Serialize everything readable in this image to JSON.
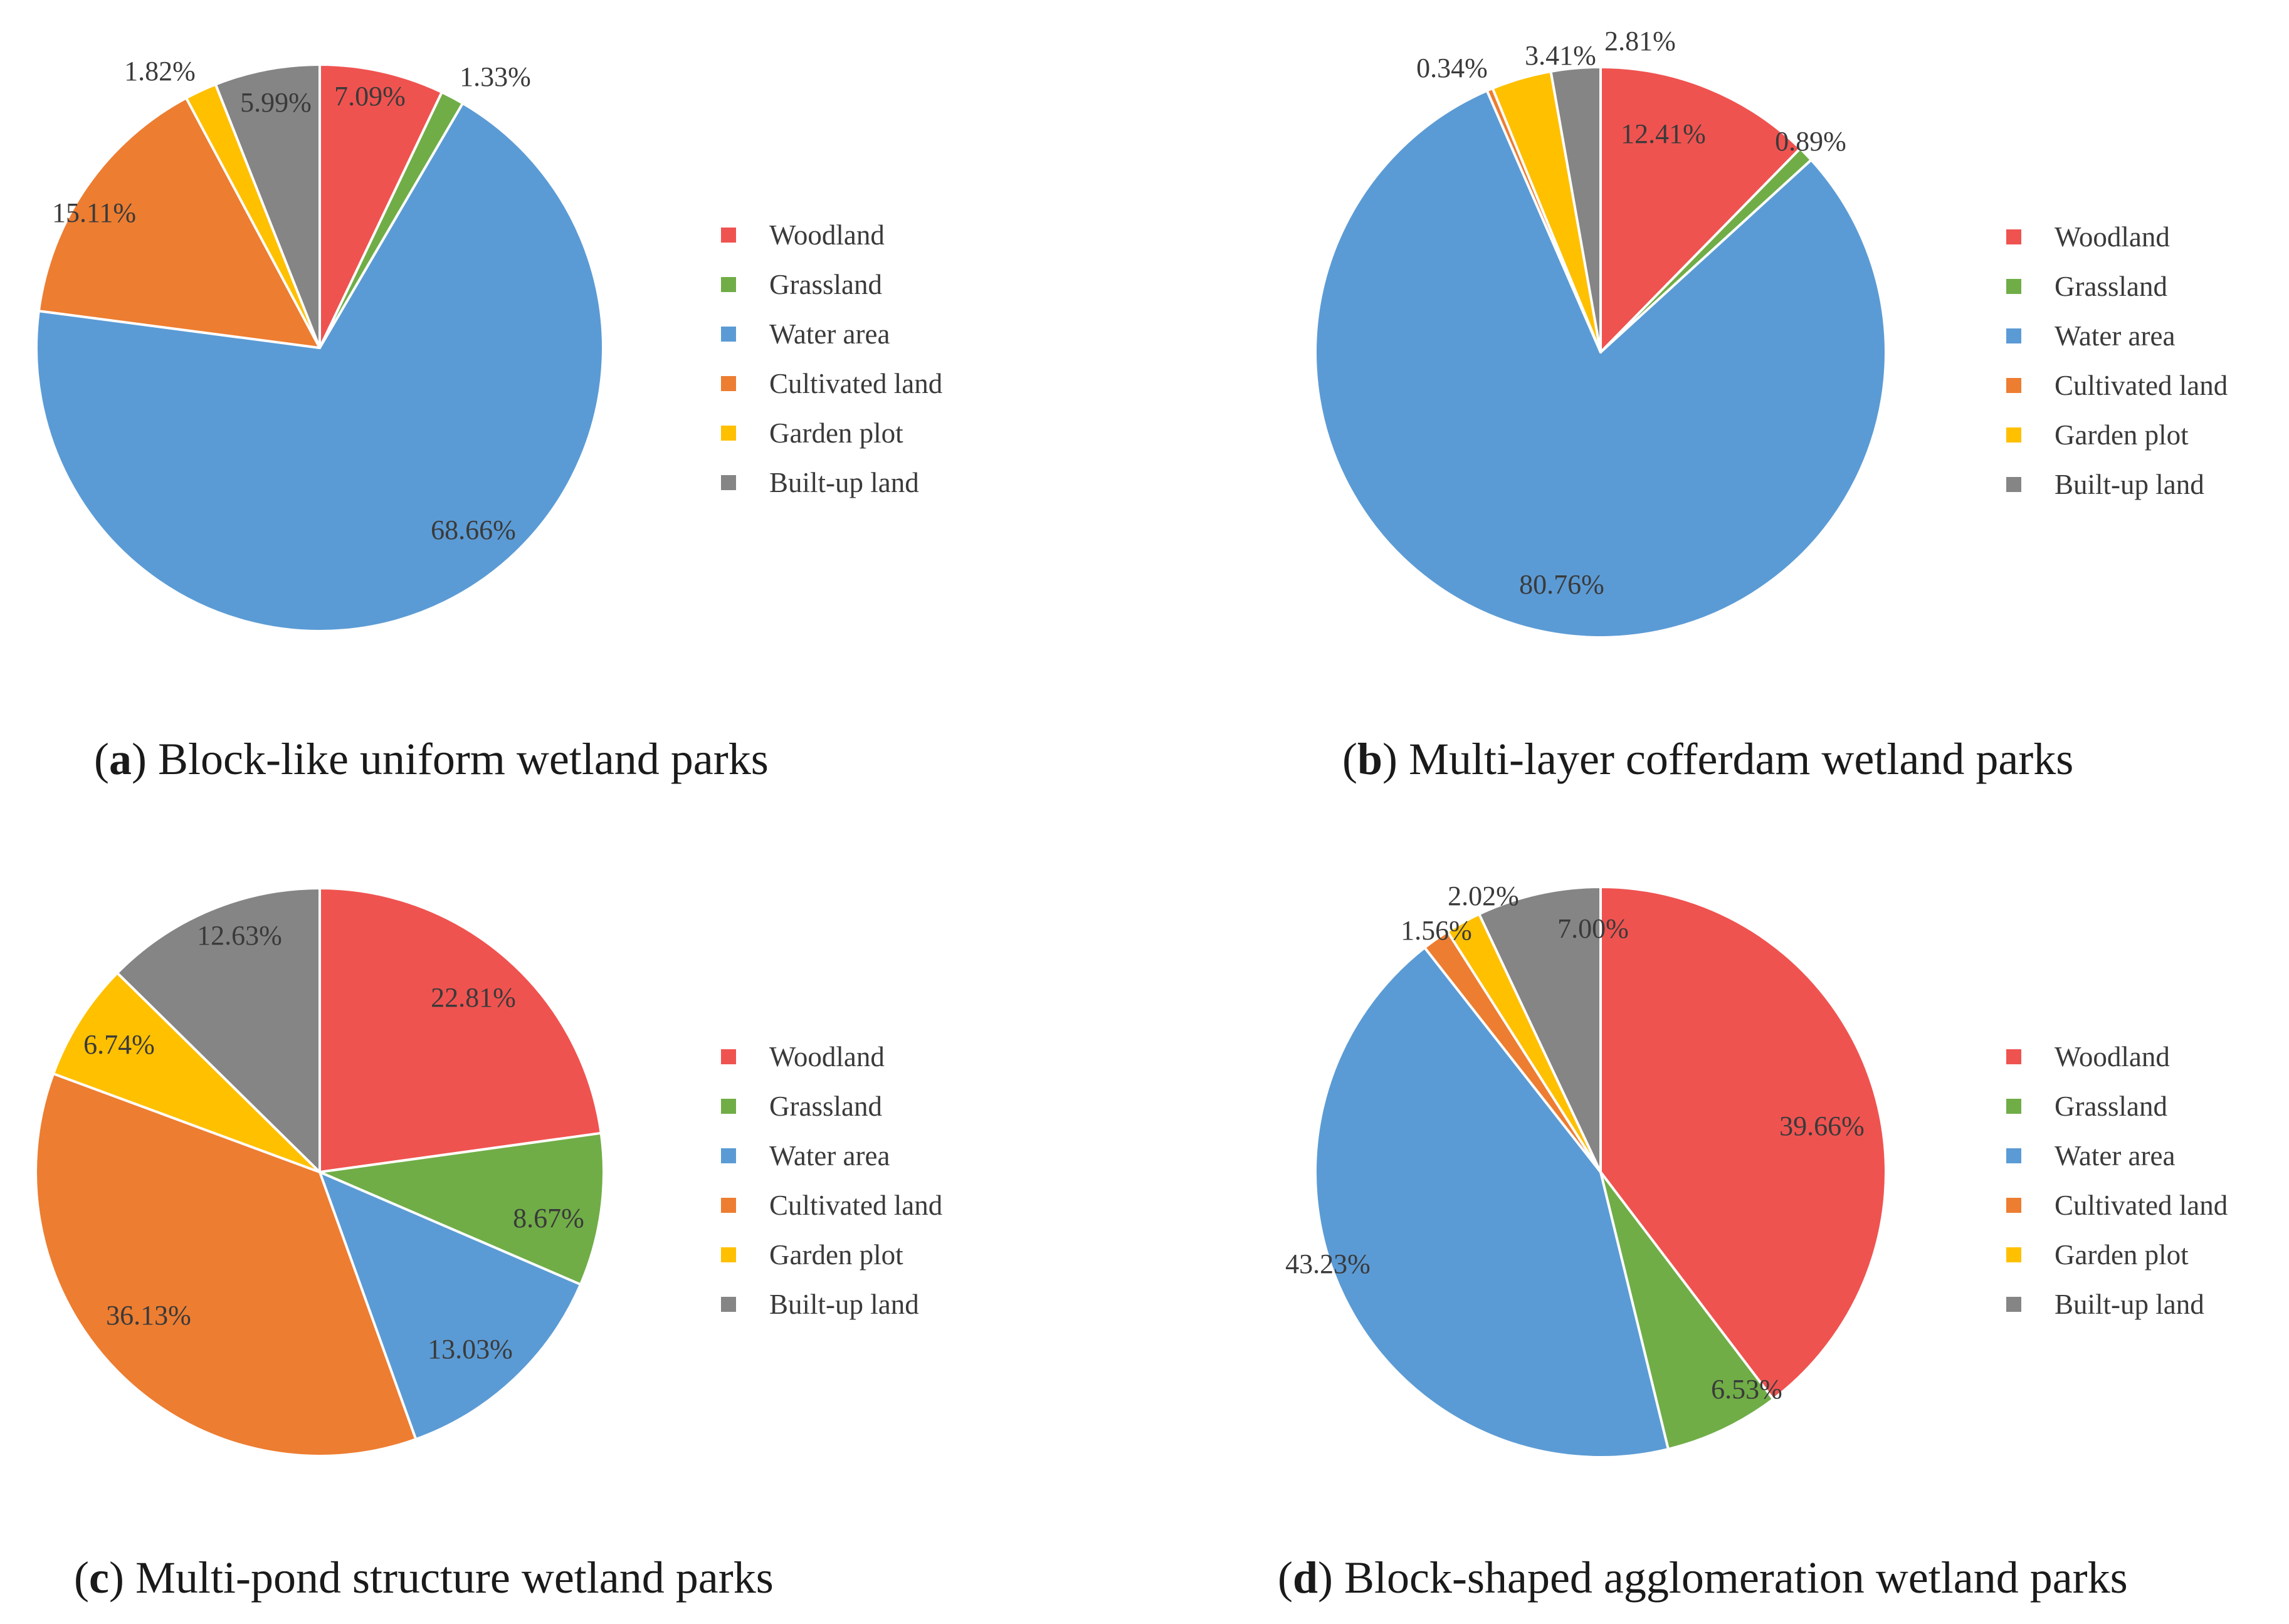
{
  "legend_labels": [
    "Woodland",
    "Grassland",
    "Water area",
    "Cultivated land",
    "Garden plot",
    "Built-up land"
  ],
  "colors": {
    "Woodland": "#ef5350",
    "Grassland": "#70ad47",
    "Water area": "#5b9bd5",
    "Cultivated land": "#ed7d31",
    "Garden plot": "#ffc000",
    "Built-up land": "#858585"
  },
  "chart_data": [
    {
      "type": "pie",
      "id": "a",
      "caption_letter": "a",
      "caption_text": "Block-like uniform wetland parks",
      "categories": [
        "Woodland",
        "Grassland",
        "Water area",
        "Cultivated land",
        "Garden plot",
        "Built-up land"
      ],
      "values": [
        7.09,
        1.33,
        68.66,
        15.11,
        1.82,
        5.99
      ],
      "labels": [
        "7.09%",
        "1.33%",
        "68.66%",
        "15.11%",
        "1.82%",
        "5.99%"
      ]
    },
    {
      "type": "pie",
      "id": "b",
      "caption_letter": "b",
      "caption_text": "Multi-layer cofferdam wetland parks",
      "categories": [
        "Woodland",
        "Grassland",
        "Water area",
        "Cultivated land",
        "Garden plot",
        "Built-up land"
      ],
      "values": [
        12.41,
        0.89,
        80.76,
        0.34,
        3.41,
        2.81
      ],
      "labels": [
        "12.41%",
        "0.89%",
        "80.76%",
        "0.34%",
        "3.41%",
        "2.81%"
      ]
    },
    {
      "type": "pie",
      "id": "c",
      "caption_letter": "c",
      "caption_text": "Multi-pond structure wetland parks",
      "categories": [
        "Woodland",
        "Grassland",
        "Water area",
        "Cultivated land",
        "Garden plot",
        "Built-up land"
      ],
      "values": [
        22.81,
        8.67,
        13.03,
        36.13,
        6.74,
        12.63
      ],
      "labels": [
        "22.81%",
        "8.67%",
        "13.03%",
        "36.13%",
        "6.74%",
        "12.63%"
      ]
    },
    {
      "type": "pie",
      "id": "d",
      "caption_letter": "d",
      "caption_text": "Block-shaped agglomeration wetland parks",
      "categories": [
        "Woodland",
        "Grassland",
        "Water area",
        "Cultivated land",
        "Garden plot",
        "Built-up land"
      ],
      "values": [
        39.66,
        6.53,
        43.23,
        1.56,
        2.02,
        7.0
      ],
      "labels": [
        "39.66%",
        "6.53%",
        "43.23%",
        "1.56%",
        "2.02%",
        "7.00%"
      ]
    }
  ]
}
